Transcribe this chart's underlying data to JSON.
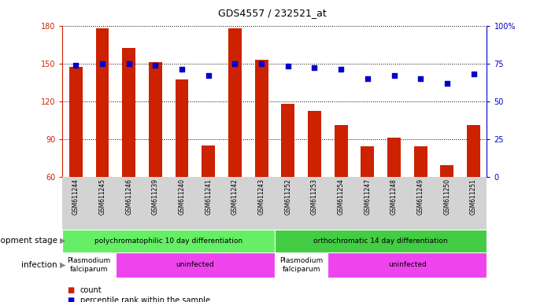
{
  "title": "GDS4557 / 232521_at",
  "samples": [
    "GSM611244",
    "GSM611245",
    "GSM611246",
    "GSM611239",
    "GSM611240",
    "GSM611241",
    "GSM611242",
    "GSM611243",
    "GSM611252",
    "GSM611253",
    "GSM611254",
    "GSM611247",
    "GSM611248",
    "GSM611249",
    "GSM611250",
    "GSM611251"
  ],
  "bar_values": [
    147,
    178,
    162,
    151,
    137,
    85,
    178,
    153,
    118,
    112,
    101,
    84,
    91,
    84,
    69,
    101
  ],
  "dot_values": [
    74,
    75,
    75,
    74,
    71,
    67,
    75,
    75,
    73,
    72,
    71,
    65,
    67,
    65,
    62,
    68
  ],
  "ylim_left": [
    60,
    180
  ],
  "ylim_right": [
    0,
    100
  ],
  "yticks_left": [
    60,
    90,
    120,
    150,
    180
  ],
  "yticks_right": [
    0,
    25,
    50,
    75,
    100
  ],
  "bar_color": "#cc2200",
  "dot_color": "#0000cc",
  "bar_width": 0.5,
  "background_color": "#ffffff",
  "dev_stage_groups": [
    {
      "label": "polychromatophilic 10 day differentiation",
      "start": 0,
      "end": 7,
      "color": "#66ee66"
    },
    {
      "label": "orthochromatic 14 day differentiation",
      "start": 8,
      "end": 15,
      "color": "#44cc44"
    }
  ],
  "infection_groups": [
    {
      "label": "Plasmodium\nfalciparum",
      "start": 0,
      "end": 1,
      "color": "#ffffff"
    },
    {
      "label": "uninfected",
      "start": 2,
      "end": 7,
      "color": "#ee44ee"
    },
    {
      "label": "Plasmodium\nfalciparum",
      "start": 8,
      "end": 9,
      "color": "#ffffff"
    },
    {
      "label": "uninfected",
      "start": 10,
      "end": 15,
      "color": "#ee44ee"
    }
  ],
  "dev_stage_label": "development stage",
  "infection_label": "infection",
  "legend_count": "count",
  "legend_pct": "percentile rank within the sample",
  "tick_label_size": 7,
  "title_size": 9
}
